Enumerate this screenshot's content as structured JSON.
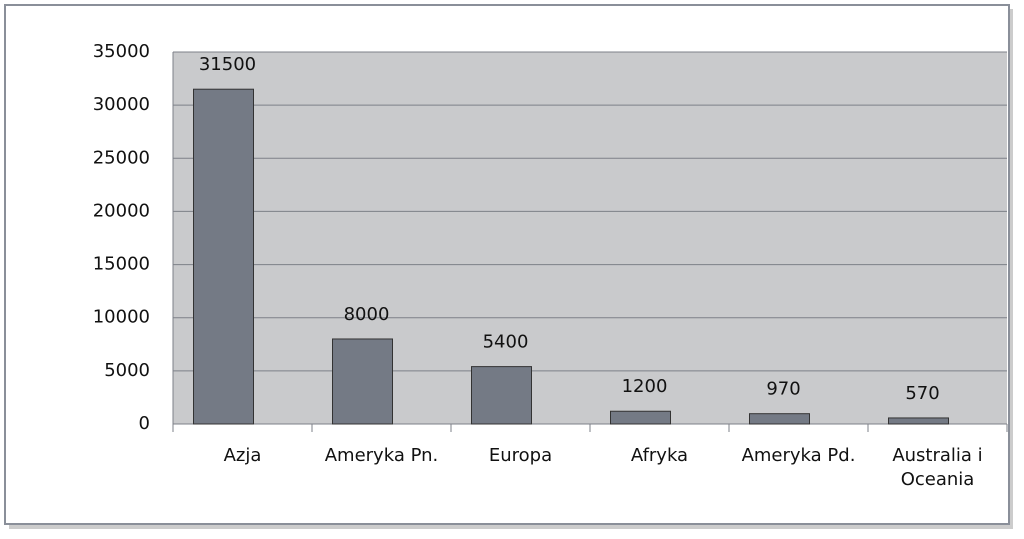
{
  "chart_data": {
    "type": "bar",
    "categories": [
      "Azja",
      "Ameryka Pn.",
      "Europa",
      "Afryka",
      "Ameryka Pd.",
      "Australia i Oceania"
    ],
    "values": [
      31500,
      8000,
      5400,
      1200,
      970,
      570
    ],
    "color": "#747a85",
    "ylim": [
      0,
      35000
    ],
    "yticks": [
      0,
      5000,
      10000,
      15000,
      20000,
      25000,
      30000,
      35000
    ],
    "grid": true
  }
}
